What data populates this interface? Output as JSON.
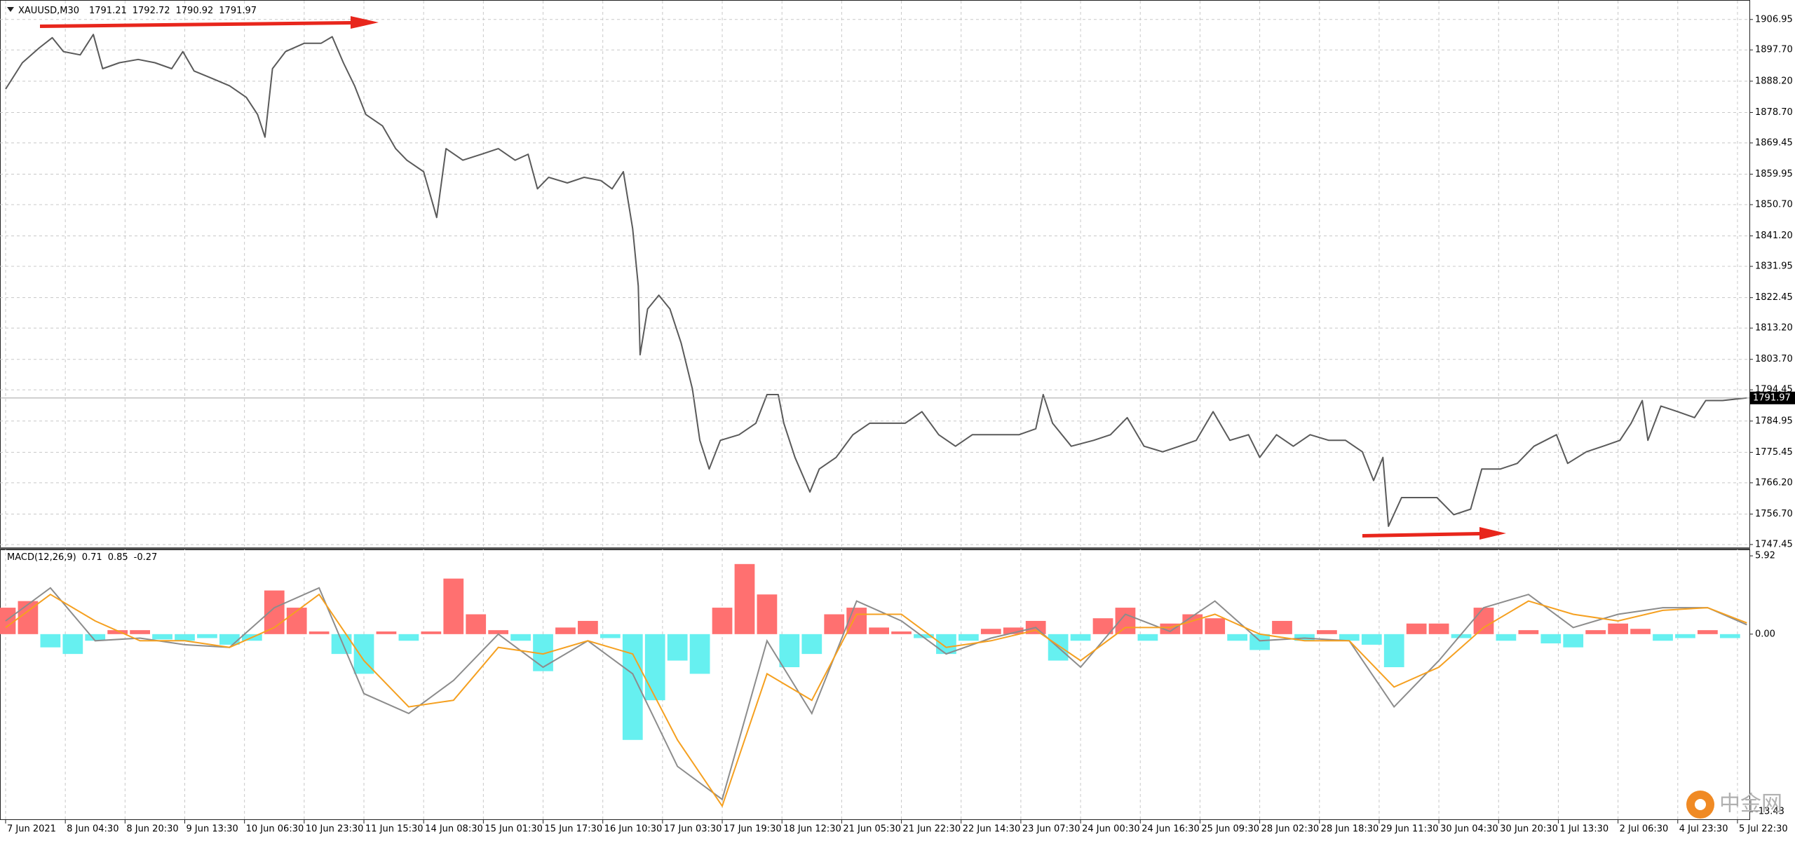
{
  "header": {
    "symbol": "XAUUSD,M30",
    "ohlc": [
      1791.21,
      1792.72,
      1790.92,
      1791.97
    ]
  },
  "watermark": "中金网",
  "chart_data": [
    {
      "type": "line",
      "color": "#5a5a5a",
      "grid": true,
      "last_price": 1791.97,
      "xlim": [
        -3,
        934.4
      ],
      "ylim": [
        1746.8,
        1911.8
      ],
      "yticks": [
        1906.95,
        {
          "value": 1897.7,
          "label": "1897.70"
        },
        {
          "value": 1888.2,
          "label": "1888.20"
        },
        {
          "value": 1878.7,
          "label": "1878.70"
        },
        1869.45,
        1859.95,
        {
          "value": 1850.7,
          "label": "1850.70"
        },
        {
          "value": 1841.2,
          "label": "1841.20"
        },
        1831.95,
        1822.45,
        {
          "value": 1813.2,
          "label": "1813.20"
        },
        {
          "value": 1803.7,
          "label": "1803.70"
        },
        1794.45,
        1784.95,
        1775.45,
        {
          "value": 1766.2,
          "label": "1766.20"
        },
        {
          "value": 1756.7,
          "label": "1756.70"
        },
        1747.45
      ],
      "x": [
        0,
        9,
        18,
        25,
        31,
        40,
        47,
        52,
        61,
        71,
        80,
        89,
        95,
        101,
        110,
        120,
        129,
        135,
        139,
        143,
        150,
        160,
        169,
        175,
        181,
        187,
        193,
        202,
        209,
        215,
        224,
        231,
        236,
        245,
        255,
        264,
        273,
        280,
        285,
        291,
        301,
        310,
        319,
        325,
        331,
        336,
        339,
        340,
        344,
        350,
        356,
        362,
        368,
        372,
        377,
        383,
        393,
        402,
        408,
        414,
        417,
        423,
        431,
        436,
        445,
        454,
        463,
        472,
        482,
        491,
        500,
        509,
        518,
        531,
        543,
        552,
        556,
        561,
        571,
        583,
        592,
        601,
        610,
        620,
        629,
        638,
        647,
        656,
        666,
        672,
        681,
        690,
        699,
        709,
        718,
        727,
        733,
        738,
        741,
        748,
        758,
        767,
        776,
        785,
        791,
        801,
        810,
        819,
        831,
        837,
        847,
        856,
        865,
        871,
        877,
        880,
        887,
        896,
        905,
        911,
        920,
        933
      ],
      "values": [
        1885.8,
        1893.8,
        1898.3,
        1901.4,
        1897.2,
        1896.2,
        1902.4,
        1892.0,
        1893.8,
        1894.8,
        1893.8,
        1892.0,
        1897.2,
        1891.3,
        1889.2,
        1886.8,
        1883.3,
        1878.1,
        1871.2,
        1892.0,
        1897.2,
        1899.7,
        1899.7,
        1901.7,
        1893.8,
        1886.8,
        1878.1,
        1874.6,
        1867.7,
        1864.2,
        1860.7,
        1846.8,
        1867.7,
        1864.2,
        1866.0,
        1867.7,
        1864.2,
        1866.0,
        1855.5,
        1859.0,
        1857.3,
        1859.0,
        1858.0,
        1855.5,
        1860.7,
        1843.4,
        1826.0,
        1805.1,
        1819.0,
        1823.2,
        1819.0,
        1808.6,
        1794.7,
        1779.1,
        1770.4,
        1779.1,
        1780.8,
        1784.3,
        1793.0,
        1793.0,
        1784.3,
        1773.9,
        1763.4,
        1770.4,
        1773.9,
        1780.8,
        1784.3,
        1784.3,
        1784.3,
        1787.8,
        1780.8,
        1777.3,
        1780.8,
        1780.8,
        1780.8,
        1782.6,
        1793.0,
        1784.3,
        1777.3,
        1779.1,
        1780.8,
        1786.0,
        1777.3,
        1775.6,
        1777.3,
        1779.1,
        1787.8,
        1779.1,
        1780.8,
        1773.9,
        1780.8,
        1777.3,
        1780.8,
        1779.1,
        1779.1,
        1775.6,
        1766.9,
        1773.9,
        1753.0,
        1761.7,
        1761.7,
        1761.7,
        1756.5,
        1758.2,
        1770.4,
        1770.4,
        1772.1,
        1777.3,
        1780.8,
        1772.1,
        1775.6,
        1777.3,
        1779.1,
        1784.3,
        1791.2,
        1779.1,
        1789.5,
        1787.8,
        1786.0,
        1791.2,
        1791.2,
        1791.97
      ]
    },
    {
      "type": "macd",
      "title": "MACD(12,26,9)",
      "title_values": [
        0.71,
        0.85,
        -0.27
      ],
      "color_up": "#ff7070",
      "color_down": "#66f0f0",
      "grid": true,
      "xlim": [
        -3,
        934.4
      ],
      "ylim": [
        -14.0,
        6.35
      ],
      "yticks": [
        5.92,
        {
          "value": 0,
          "label": "0.00"
        },
        -13.43
      ],
      "xticks": [
        {
          "value": 0,
          "label": "7 Jun 2021"
        },
        {
          "value": 32,
          "label": "8 Jun 04:30"
        },
        {
          "value": 64,
          "label": "8 Jun 20:30"
        },
        {
          "value": 96,
          "label": "9 Jun 13:30"
        },
        {
          "value": 128,
          "label": "10 Jun 06:30"
        },
        {
          "value": 160,
          "label": "10 Jun 23:30"
        },
        {
          "value": 192,
          "label": "11 Jun 15:30"
        },
        {
          "value": 224,
          "label": "14 Jun 08:30"
        },
        {
          "value": 256,
          "label": "15 Jun 01:30"
        },
        {
          "value": 288,
          "label": "15 Jun 17:30"
        },
        {
          "value": 320,
          "label": "16 Jun 10:30"
        },
        {
          "value": 352,
          "label": "17 Jun 03:30"
        },
        {
          "value": 384,
          "label": "17 Jun 19:30"
        },
        {
          "value": 416,
          "label": "18 Jun 12:30"
        },
        {
          "value": 448,
          "label": "21 Jun 05:30"
        },
        {
          "value": 480,
          "label": "21 Jun 22:30"
        },
        {
          "value": 512,
          "label": "22 Jun 14:30"
        },
        {
          "value": 544,
          "label": "23 Jun 07:30"
        },
        {
          "value": 576,
          "label": "24 Jun 00:30"
        },
        {
          "value": 608,
          "label": "24 Jun 16:30"
        },
        {
          "value": 640,
          "label": "25 Jun 09:30"
        },
        {
          "value": 672,
          "label": "28 Jun 02:30"
        },
        {
          "value": 704,
          "label": "28 Jun 18:30"
        },
        {
          "value": 736,
          "label": "29 Jun 11:30"
        },
        {
          "value": 768,
          "label": "30 Jun 04:30"
        },
        {
          "value": 800,
          "label": "30 Jun 20:30"
        },
        {
          "value": 832,
          "label": "1 Jul 13:30"
        },
        {
          "value": 864,
          "label": "2 Jul 06:30"
        },
        {
          "value": 896,
          "label": "4 Jul 23:30"
        },
        {
          "value": 928,
          "label": "5 Jul 22:30"
        }
      ],
      "x": [
        0,
        12,
        24,
        36,
        48,
        60,
        72,
        84,
        96,
        108,
        120,
        132,
        144,
        156,
        168,
        180,
        192,
        204,
        216,
        228,
        240,
        252,
        264,
        276,
        288,
        300,
        312,
        324,
        336,
        348,
        360,
        372,
        384,
        396,
        408,
        420,
        432,
        444,
        456,
        468,
        480,
        492,
        504,
        516,
        528,
        540,
        552,
        564,
        576,
        588,
        600,
        612,
        624,
        636,
        648,
        660,
        672,
        684,
        696,
        708,
        720,
        732,
        744,
        756,
        768,
        780,
        792,
        804,
        816,
        828,
        840,
        852,
        864,
        876,
        888,
        900,
        912,
        924
      ],
      "values": [
        2,
        2.5,
        -1,
        -1.5,
        -0.5,
        0.3,
        0.3,
        -0.4,
        -0.5,
        -0.3,
        -0.8,
        -0.5,
        3.3,
        2,
        0.2,
        -1.5,
        -3,
        0.2,
        -0.5,
        0.2,
        4.2,
        1.5,
        0.3,
        -0.5,
        -2.8,
        0.5,
        1,
        -0.3,
        -8,
        -5,
        -2,
        -3,
        2,
        5.3,
        3,
        -2.5,
        -1.5,
        1.5,
        2,
        0.5,
        0.2,
        -0.3,
        -1.5,
        -0.5,
        0.4,
        0.5,
        1,
        -2,
        -0.5,
        1.2,
        2,
        -0.5,
        0.8,
        1.5,
        1.2,
        -0.5,
        -1.2,
        1,
        -0.5,
        0.3,
        -0.5,
        -0.8,
        -2.5,
        0.8,
        0.8,
        -0.3,
        2,
        -0.5,
        0.3,
        -0.7,
        -1,
        0.3,
        0.8,
        0.4,
        -0.5,
        -0.3,
        0.3,
        -0.3
      ],
      "series": [
        {
          "color": "#8c8c8c",
          "x": [
            0,
            24,
            48,
            72,
            96,
            120,
            144,
            168,
            192,
            216,
            240,
            264,
            288,
            312,
            336,
            360,
            384,
            408,
            432,
            456,
            480,
            504,
            528,
            552,
            576,
            600,
            624,
            648,
            672,
            696,
            720,
            744,
            768,
            792,
            816,
            840,
            864,
            888,
            912,
            933
          ],
          "values": [
            1,
            3.5,
            -0.5,
            -0.3,
            -0.8,
            -1,
            2,
            3.5,
            -4.5,
            -6,
            -3.5,
            0,
            -2.5,
            -0.5,
            -3,
            -10,
            -12.5,
            -0.5,
            -6,
            2.5,
            1,
            -1.5,
            -0.3,
            0.5,
            -2.5,
            1.5,
            0.2,
            2.5,
            -0.5,
            -0.3,
            -0.5,
            -5.5,
            -2,
            2,
            3,
            0.5,
            1.5,
            2,
            2,
            0.71
          ]
        },
        {
          "color": "#f5a020",
          "x": [
            0,
            24,
            48,
            72,
            96,
            120,
            144,
            168,
            192,
            216,
            240,
            264,
            288,
            312,
            336,
            360,
            384,
            408,
            432,
            456,
            480,
            504,
            528,
            552,
            576,
            600,
            624,
            648,
            672,
            696,
            720,
            744,
            768,
            792,
            816,
            840,
            864,
            888,
            912,
            933
          ],
          "values": [
            0.5,
            3,
            1,
            -0.5,
            -0.5,
            -1,
            0.5,
            3,
            -2,
            -5.5,
            -5,
            -1,
            -1.5,
            -0.5,
            -1.5,
            -8,
            -13,
            -3,
            -5,
            1.5,
            1.5,
            -1,
            -0.5,
            0.3,
            -2,
            0.5,
            0.5,
            1.5,
            0,
            -0.5,
            -0.5,
            -4,
            -2.5,
            0.5,
            2.5,
            1.5,
            1,
            1.8,
            2,
            0.85
          ]
        }
      ]
    }
  ]
}
